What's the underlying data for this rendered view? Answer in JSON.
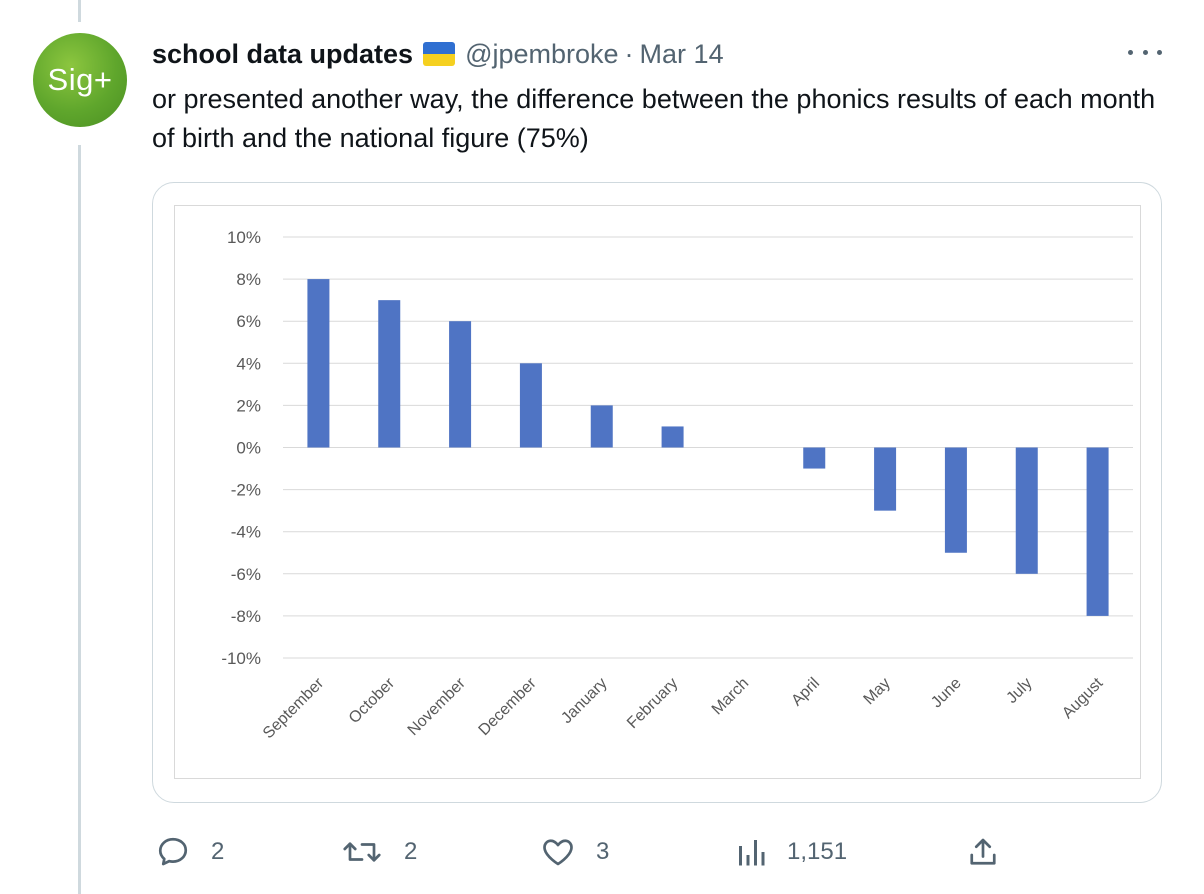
{
  "tweet": {
    "avatar_label": "Sig+",
    "author_name": "school data updates",
    "flag_icon": "ukraine-flag",
    "handle": "@jpembroke",
    "separator": "·",
    "date": "Mar 14",
    "text": "or presented another way, the difference between the phonics results of each month of birth and the national figure (75%)"
  },
  "actions": {
    "replies": "2",
    "reposts": "2",
    "likes": "3",
    "views": "1,151"
  },
  "colors": {
    "bar": "#4f74c4",
    "grid": "#d9d9d9",
    "avatar": "#6ab02f",
    "muted": "#536471"
  },
  "chart_data": {
    "type": "bar",
    "categories": [
      "September",
      "October",
      "November",
      "December",
      "January",
      "February",
      "March",
      "April",
      "May",
      "June",
      "July",
      "August"
    ],
    "values": [
      8,
      7,
      6,
      4,
      2,
      1,
      0,
      -1,
      -3,
      -5,
      -6,
      -8
    ],
    "yticks": [
      "10%",
      "8%",
      "6%",
      "4%",
      "2%",
      "0%",
      "-2%",
      "-4%",
      "-6%",
      "-8%",
      "-10%"
    ],
    "ylim": [
      -10,
      10
    ],
    "unit": "%",
    "grid": true,
    "legend": "none"
  }
}
